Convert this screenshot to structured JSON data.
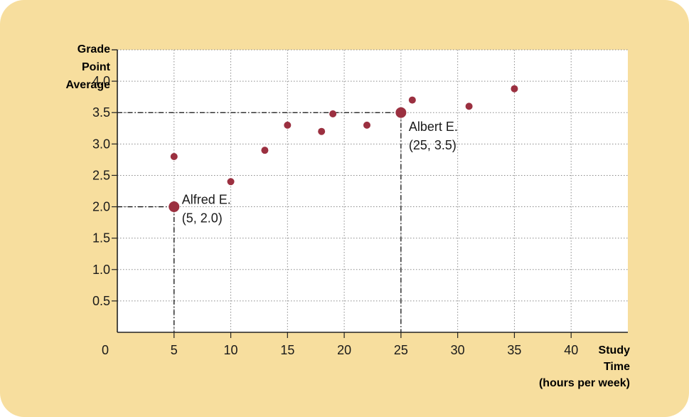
{
  "colors": {
    "card_background": "#f7de9e",
    "plot_background": "#ffffff",
    "point": "#9b3040",
    "axis": "#222222"
  },
  "chart_data": {
    "type": "scatter",
    "title": "",
    "xlabel": [
      "Study",
      "Time",
      "(hours per week)"
    ],
    "ylabel": [
      "Grade",
      "Point",
      "Average"
    ],
    "xlim": [
      0,
      45
    ],
    "ylim": [
      0,
      4.5
    ],
    "x_ticks": [
      0,
      5,
      10,
      15,
      20,
      25,
      30,
      35,
      40
    ],
    "y_ticks": [
      0.5,
      1.0,
      1.5,
      2.0,
      2.5,
      3.0,
      3.5,
      4.0
    ],
    "x_tick_labels": [
      "0",
      "5",
      "10",
      "15",
      "20",
      "25",
      "30",
      "35",
      "40"
    ],
    "y_tick_labels": [
      "0.5",
      "1.0",
      "1.5",
      "2.0",
      "2.5",
      "3.0",
      "3.5",
      "4.0"
    ],
    "grid": true,
    "points": [
      {
        "x": 5,
        "y": 2.8
      },
      {
        "x": 10,
        "y": 2.4
      },
      {
        "x": 13,
        "y": 2.9
      },
      {
        "x": 15,
        "y": 3.3
      },
      {
        "x": 18,
        "y": 3.2
      },
      {
        "x": 19,
        "y": 3.48
      },
      {
        "x": 22,
        "y": 3.3
      },
      {
        "x": 26,
        "y": 3.7
      },
      {
        "x": 31,
        "y": 3.6
      },
      {
        "x": 35,
        "y": 3.88
      }
    ],
    "highlighted_points": [
      {
        "x": 5,
        "y": 2.0,
        "label": [
          "Alfred E.",
          "(5, 2.0)"
        ]
      },
      {
        "x": 25,
        "y": 3.5,
        "label": [
          "Albert E.",
          "(25, 3.5)"
        ]
      }
    ]
  }
}
